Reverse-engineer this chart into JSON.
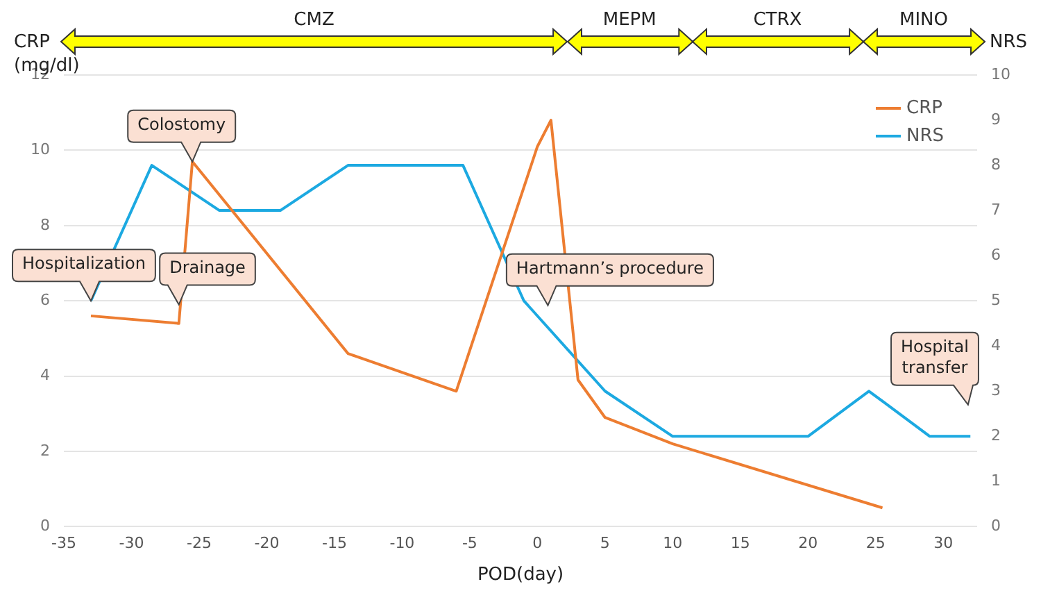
{
  "chart_data": {
    "type": "line",
    "xlabel": "POD(day)",
    "ylabel": "CRP\n(mg/dl)",
    "y2label": "NRS",
    "xlim": [
      -35,
      32.5
    ],
    "xticks": [
      -35,
      -30,
      -25,
      -20,
      -15,
      -10,
      -5,
      0,
      5,
      10,
      15,
      20,
      25,
      30
    ],
    "ylim": [
      0,
      12
    ],
    "yticks": [
      0,
      2,
      4,
      6,
      8,
      10,
      12
    ],
    "y2lim": [
      0,
      10
    ],
    "y2ticks": [
      0,
      1,
      2,
      3,
      4,
      5,
      6,
      7,
      8,
      9,
      10
    ],
    "grid": "y",
    "legend": "top right",
    "marker": "none",
    "line_style": "solid",
    "series": [
      {
        "name": "CRP",
        "color": "#ed7d31",
        "x": [
          -33,
          -26.5,
          -25.5,
          -14,
          -6,
          0,
          1,
          3,
          5,
          10,
          25.5
        ],
        "values": [
          5.6,
          5.4,
          9.7,
          4.6,
          3.6,
          10.1,
          10.8,
          3.9,
          2.9,
          2.2,
          0.5
        ]
      },
      {
        "name": "NRS",
        "color": "#1ca9e1",
        "axis": "y2",
        "x": [
          -33,
          -28.5,
          -23.5,
          -19,
          -14,
          -5.5,
          -1,
          5,
          10,
          20,
          24.5,
          29,
          32
        ],
        "values": [
          5,
          8,
          7,
          7,
          8,
          8,
          5,
          3,
          2,
          2,
          3,
          2,
          2
        ]
      }
    ],
    "annotations": [
      {
        "text": "Hospitalization",
        "x": -33,
        "y": 6
      },
      {
        "text": "Colostomy",
        "x": -25.5,
        "y": 9.7
      },
      {
        "text": "Drainage",
        "x": -26.5,
        "y": 5.9
      },
      "Hartmann’s procedure",
      "Hospital\ntransfer",
      "CMZ",
      "MEPM",
      "CTRX",
      "MINO"
    ]
  }
}
